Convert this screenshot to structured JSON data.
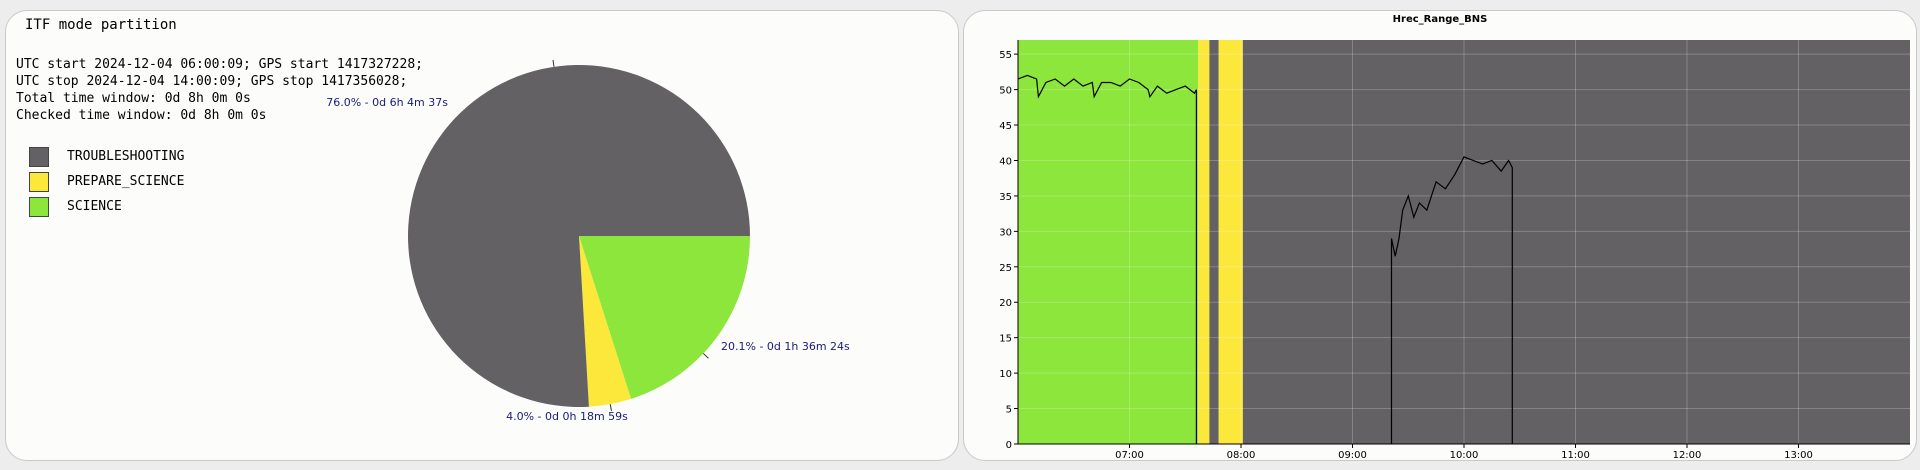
{
  "pie_panel": {
    "title": "ITF mode partition",
    "info": [
      "UTC start 2024-12-04 06:00:09; GPS start 1417327228;",
      "UTC stop 2024-12-04 14:00:09; GPS stop 1417356028;",
      "Total time window: 0d 8h 0m 0s",
      "Checked time window: 0d 8h 0m 0s"
    ],
    "legend": [
      {
        "label": "TROUBLESHOOTING",
        "color": "#636163"
      },
      {
        "label": "PREPARE_SCIENCE",
        "color": "#fbe83b"
      },
      {
        "label": "SCIENCE",
        "color": "#8ce63c"
      }
    ]
  },
  "line_panel": {
    "title": "Hrec_Range_BNS"
  },
  "chart_data": [
    {
      "type": "pie",
      "title": "ITF mode partition",
      "slices": [
        {
          "label": "TROUBLESHOOTING",
          "value": 76.0,
          "annotation": "76.0% - 0d 6h 4m 37s",
          "color": "#636163"
        },
        {
          "label": "PREPARE_SCIENCE",
          "value": 4.0,
          "annotation": "4.0% - 0d 0h 18m 59s",
          "color": "#fbe83b"
        },
        {
          "label": "SCIENCE",
          "value": 20.1,
          "annotation": "20.1% - 0d 1h 36m 24s",
          "color": "#8ce63c"
        }
      ],
      "start_angle": "3 o'clock",
      "direction": "clockwise from SCIENCE"
    },
    {
      "type": "line",
      "title": "Hrec_Range_BNS",
      "xlim": [
        "06:00",
        "14:00"
      ],
      "ylim": [
        0,
        57
      ],
      "xticks": [
        "07:00",
        "08:00",
        "09:00",
        "10:00",
        "11:00",
        "12:00",
        "13:00"
      ],
      "yticks": [
        0,
        5,
        10,
        15,
        20,
        25,
        30,
        35,
        40,
        45,
        50,
        55
      ],
      "grid": true,
      "background_bands": [
        {
          "from": "06:00",
          "to": "07:37",
          "mode": "SCIENCE",
          "color": "#8ce63c"
        },
        {
          "from": "07:37",
          "to": "07:43",
          "mode": "PREPARE_SCIENCE",
          "color": "#fbe83b"
        },
        {
          "from": "07:43",
          "to": "07:48",
          "mode": "TROUBLESHOOTING",
          "color": "#636163"
        },
        {
          "from": "07:48",
          "to": "08:01",
          "mode": "PREPARE_SCIENCE",
          "color": "#fbe83b"
        },
        {
          "from": "08:01",
          "to": "14:00",
          "mode": "TROUBLESHOOTING",
          "color": "#636163"
        }
      ],
      "series": [
        {
          "color": "#000000",
          "x": [
            "06:00",
            "06:05",
            "06:10",
            "06:11",
            "06:15",
            "06:20",
            "06:25",
            "06:30",
            "06:35",
            "06:40",
            "06:41",
            "06:45",
            "06:50",
            "06:55",
            "07:00",
            "07:05",
            "07:10",
            "07:11",
            "07:15",
            "07:20",
            "07:25",
            "07:30",
            "07:35",
            "07:36",
            "07:36"
          ],
          "y": [
            51.5,
            52,
            51.5,
            49,
            51,
            51.5,
            50.5,
            51.5,
            50.5,
            51,
            49,
            51,
            51,
            50.5,
            51.5,
            51,
            50,
            49,
            50.5,
            49.5,
            50,
            50.5,
            49.5,
            50,
            0
          ]
        },
        {
          "color": "#000000",
          "x": [
            "09:21",
            "09:21",
            "09:23",
            "09:25",
            "09:27",
            "09:30",
            "09:33",
            "09:36",
            "09:40",
            "09:45",
            "09:50",
            "09:55",
            "10:00",
            "10:05",
            "10:10",
            "10:15",
            "10:20",
            "10:24",
            "10:26",
            "10:26"
          ],
          "y": [
            0,
            29,
            26.5,
            29,
            33,
            35,
            32,
            34,
            33,
            37,
            36,
            38,
            40.5,
            40,
            39.5,
            40,
            38.5,
            40,
            39,
            0
          ]
        }
      ]
    }
  ]
}
